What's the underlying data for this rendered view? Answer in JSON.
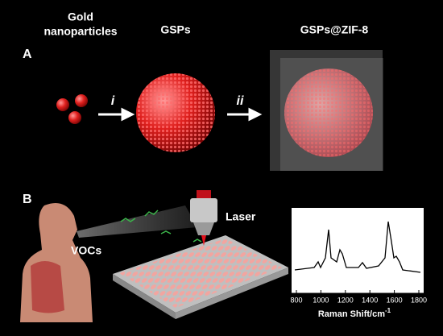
{
  "header": {
    "gold_label_line1": "Gold",
    "gold_label_line2": "nanoparticles",
    "gsps_label": "GSPs",
    "zif_label": "GSPs@ZIF-8"
  },
  "panel_a": {
    "label": "A",
    "step1": "i",
    "step2": "ii"
  },
  "panel_b": {
    "label": "B",
    "vocs": "VOCs",
    "laser": "Laser",
    "spectrum": {
      "xlim": [
        800,
        1800
      ],
      "xticks": [
        800,
        1000,
        1200,
        1400,
        1600,
        1800
      ],
      "x_label": "Raman Shift/cm",
      "x_label_sup": "-1"
    }
  }
}
